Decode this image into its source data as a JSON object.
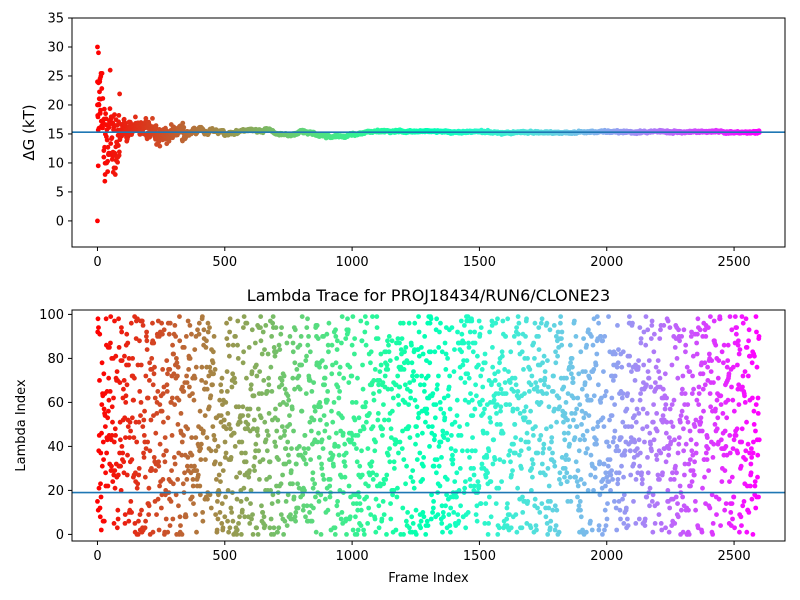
{
  "colors": {
    "reference_line": "#1f77b4",
    "colormap": "rainbow"
  },
  "chart_data": [
    {
      "type": "scatter",
      "title": "",
      "xlabel": "",
      "ylabel": "ΔG (kT)",
      "xlim": [
        -100,
        2700
      ],
      "ylim": [
        -4.5,
        35
      ],
      "xticks": [
        0,
        500,
        1000,
        1500,
        2000,
        2500
      ],
      "yticks": [
        0,
        5,
        10,
        15,
        20,
        25,
        30,
        35
      ],
      "grid": false,
      "color_by": "frame index (rainbow colormap, red at start to violet at end)",
      "reference_line_y": 15.3,
      "n_points": 2600,
      "convergence_trace": {
        "x": [
          0,
          10,
          20,
          30,
          40,
          50,
          60,
          80,
          100,
          130,
          160,
          200,
          250,
          300,
          350,
          400,
          450,
          500,
          550,
          600,
          650,
          700,
          750,
          800,
          850,
          900,
          950,
          1000,
          1050,
          1100,
          1200,
          1300,
          1400,
          1500,
          1600,
          1700,
          1800,
          1900,
          2000,
          2100,
          2200,
          2300,
          2400,
          2500,
          2600
        ],
        "y": [
          20,
          22,
          18,
          14,
          13,
          15,
          12,
          14,
          16,
          15.5,
          16.5,
          15.8,
          14.5,
          15.5,
          15,
          15.5,
          15.8,
          14.5,
          15.5,
          15.6,
          15.8,
          15.2,
          14.8,
          15.3,
          15.1,
          14.8,
          14.5,
          14.9,
          15.2,
          15.5,
          15.4,
          15.5,
          15.3,
          15.4,
          15.2,
          15.3,
          15.2,
          15.3,
          15.4,
          15.3,
          15.4,
          15.3,
          15.4,
          15.3,
          15.3
        ]
      },
      "early_outliers": [
        {
          "x": 0,
          "y": 30
        },
        {
          "x": 4,
          "y": 29
        },
        {
          "x": 2,
          "y": 24
        },
        {
          "x": 10,
          "y": 24.5
        },
        {
          "x": 0,
          "y": 20
        },
        {
          "x": 6,
          "y": 16
        },
        {
          "x": 3,
          "y": 9.5
        },
        {
          "x": 0,
          "y": 0
        },
        {
          "x": 12,
          "y": 21
        },
        {
          "x": 20,
          "y": 17
        },
        {
          "x": 30,
          "y": 8
        },
        {
          "x": 40,
          "y": 8.5
        },
        {
          "x": 50,
          "y": 26
        },
        {
          "x": 25,
          "y": 11
        },
        {
          "x": 35,
          "y": 10
        },
        {
          "x": 70,
          "y": 8
        },
        {
          "x": 60,
          "y": 18
        },
        {
          "x": 80,
          "y": 11
        }
      ]
    },
    {
      "type": "scatter",
      "title": "Lambda Trace for PROJ18434/RUN6/CLONE23",
      "xlabel": "Frame Index",
      "ylabel": "Lambda Index",
      "xlim": [
        -100,
        2700
      ],
      "ylim": [
        -3,
        102
      ],
      "xticks": [
        0,
        500,
        1000,
        1500,
        2000,
        2500
      ],
      "yticks": [
        0,
        20,
        40,
        60,
        80,
        100
      ],
      "grid": false,
      "color_by": "frame index (rainbow colormap, red at start to violet at end)",
      "reference_line_y": 19,
      "n_points": 2600,
      "lambda_range": [
        0,
        99
      ],
      "distribution": "approximately uniform over lambda indices 0–99 for all frames"
    }
  ]
}
